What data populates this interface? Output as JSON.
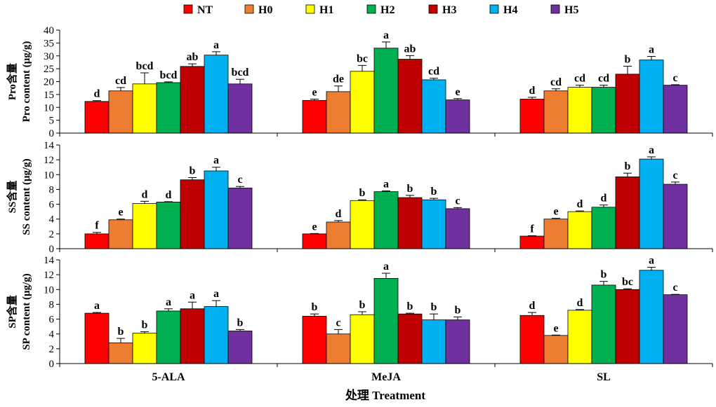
{
  "chart_data": {
    "type": "bar",
    "categories": [
      "5-ALA",
      "MeJA",
      "SL"
    ],
    "xlabel": "处理 Treatment",
    "legend": {
      "placement": "top",
      "entries": [
        {
          "name": "NT",
          "color": "#ff0000"
        },
        {
          "name": "H0",
          "color": "#ed7d31"
        },
        {
          "name": "H1",
          "color": "#ffff00"
        },
        {
          "name": "H2",
          "color": "#00b050"
        },
        {
          "name": "H3",
          "color": "#c00000"
        },
        {
          "name": "H4",
          "color": "#00b0f0"
        },
        {
          "name": "H5",
          "color": "#7030a0"
        }
      ]
    },
    "panels": [
      {
        "ylabel_cn": "Pro含量",
        "ylabel_en": "Pro content (μg/g)",
        "ylim": [
          0,
          40
        ],
        "yticks": [
          0,
          5,
          10,
          15,
          20,
          25,
          30,
          35,
          40
        ],
        "values": [
          [
            12.3,
            16.4,
            19.1,
            19.6,
            25.9,
            30.3,
            19.1
          ],
          [
            12.7,
            16.1,
            24.0,
            33.0,
            28.7,
            20.7,
            12.9
          ],
          [
            13.2,
            16.4,
            17.8,
            17.8,
            22.9,
            28.4,
            18.6
          ]
        ],
        "errors": [
          [
            0.3,
            1.3,
            4.3,
            0.3,
            1.0,
            1.3,
            1.8
          ],
          [
            0.5,
            2.2,
            2.3,
            2.4,
            1.4,
            0.6,
            0.5
          ],
          [
            0.7,
            0.8,
            0.8,
            0.8,
            3.1,
            1.4,
            0.2
          ]
        ],
        "labels": [
          [
            "d",
            "cd",
            "bcd",
            "bcd",
            "ab",
            "a",
            "bcd"
          ],
          [
            "e",
            "de",
            "bc",
            "a",
            "ab",
            "cd",
            "e"
          ],
          [
            "d",
            "cd",
            "cd",
            "cd",
            "b",
            "a",
            "c"
          ]
        ]
      },
      {
        "ylabel_cn": "SS含量",
        "ylabel_en": "SS content (μg/g)",
        "ylim": [
          0,
          14
        ],
        "yticks": [
          0,
          2,
          4,
          6,
          8,
          10,
          12,
          14
        ],
        "values": [
          [
            2.0,
            3.9,
            6.1,
            6.3,
            9.3,
            10.5,
            8.2
          ],
          [
            2.0,
            3.6,
            6.5,
            7.7,
            6.9,
            6.6,
            5.4
          ],
          [
            1.7,
            4.0,
            5.0,
            5.6,
            9.7,
            12.1,
            8.7
          ]
        ],
        "errors": [
          [
            0.2,
            0.1,
            0.3,
            0.05,
            0.3,
            0.5,
            0.2
          ],
          [
            0.05,
            0.2,
            0.1,
            0.1,
            0.3,
            0.2,
            0.15
          ],
          [
            0.05,
            0.1,
            0.1,
            0.3,
            0.5,
            0.3,
            0.3
          ]
        ],
        "labels": [
          [
            "f",
            "e",
            "d",
            "d",
            "b",
            "a",
            "c"
          ],
          [
            "e",
            "d",
            "b",
            "a",
            "b",
            "b",
            "c"
          ],
          [
            "f",
            "e",
            "d",
            "d",
            "b",
            "a",
            "c"
          ]
        ]
      },
      {
        "ylabel_cn": "SP含量",
        "ylabel_en": "SP content (μg/g)",
        "ylim": [
          0,
          14
        ],
        "yticks": [
          0,
          2,
          4,
          6,
          8,
          10,
          12,
          14
        ],
        "values": [
          [
            6.8,
            2.8,
            4.1,
            7.1,
            7.4,
            7.7,
            4.4
          ],
          [
            6.4,
            4.0,
            6.6,
            11.5,
            6.7,
            5.9,
            5.9
          ],
          [
            6.5,
            3.8,
            7.2,
            10.6,
            10.0,
            12.6,
            9.3
          ]
        ],
        "errors": [
          [
            0.1,
            0.6,
            0.2,
            0.3,
            0.9,
            0.8,
            0.2
          ],
          [
            0.3,
            0.6,
            0.4,
            0.7,
            0.1,
            0.8,
            0.4
          ],
          [
            0.4,
            0.05,
            0.1,
            0.5,
            0.1,
            0.4,
            0.05
          ]
        ],
        "labels": [
          [
            "a",
            "b",
            "b",
            "a",
            "a",
            "a",
            "b"
          ],
          [
            "b",
            "c",
            "b",
            "a",
            "b",
            "b",
            "b"
          ],
          [
            "d",
            "e",
            "d",
            "b",
            "bc",
            "a",
            "c"
          ]
        ]
      }
    ]
  }
}
